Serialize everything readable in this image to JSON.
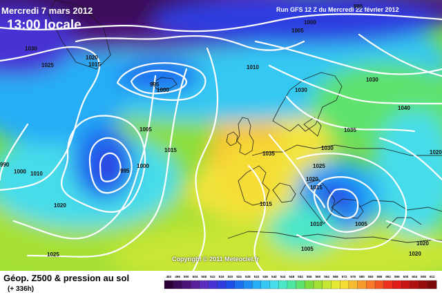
{
  "header": {
    "date": "Mercredi 7 mars 2012",
    "local_time": "13:00 locale",
    "run_info": "Run GFS 12 Z du Mercredi 22 février 2012"
  },
  "footer": {
    "title": "Géop. Z500 & pression au sol",
    "lead": "(+ 336h)"
  },
  "copyright": "Copyright © 2011 Meteociel.fr",
  "colors": {
    "deep_low": "#3a0a5a",
    "low": "#1a3cc8",
    "mid": "#3fcfe8",
    "green": "#7fdc3f",
    "high": "#f2e43a",
    "ridge": "#f6a030",
    "isobar": "#ffffff",
    "coast": "#1a1a1a"
  },
  "legend": {
    "labels": [
      "492",
      "496",
      "500",
      "504",
      "508",
      "512",
      "516",
      "520",
      "524",
      "528",
      "532",
      "536",
      "540",
      "544",
      "548",
      "552",
      "556",
      "560",
      "564",
      "568",
      "572",
      "576",
      "580",
      "584",
      "588",
      "592",
      "596",
      "600",
      "604",
      "608",
      "612"
    ],
    "colors": [
      "#2b0038",
      "#3b0a58",
      "#4a1478",
      "#5a1e98",
      "#5a2cbc",
      "#4632d4",
      "#2e3ce0",
      "#1e4ee8",
      "#1e6ef0",
      "#1e8ef4",
      "#26aef6",
      "#36c8f2",
      "#46dcea",
      "#4ce6c8",
      "#4ce6a0",
      "#5ee270",
      "#7edc40",
      "#a2e036",
      "#c4e634",
      "#e6ea34",
      "#f6dc34",
      "#f6bc30",
      "#f69a2c",
      "#f67828",
      "#f25424",
      "#ee3020",
      "#e01a1a",
      "#c81414",
      "#b01010",
      "#960c0c",
      "#7c0808"
    ]
  },
  "isobar_labels": [
    {
      "text": "985",
      "id": "isobar-label-985"
    },
    {
      "text": "1000",
      "id": "isobar-label-1000-ne"
    },
    {
      "text": "1005",
      "id": "isobar-label-1005-n"
    },
    {
      "text": "1030",
      "id": "isobar-label-1030-nw"
    },
    {
      "text": "1020",
      "id": "isobar-label-1020-nw"
    },
    {
      "text": "1015",
      "id": "isobar-label-1015-nw"
    },
    {
      "text": "1025",
      "id": "isobar-label-1025-w"
    },
    {
      "text": "1010",
      "id": "isobar-label-1010-n"
    },
    {
      "text": "1030",
      "id": "isobar-label-1030-ne"
    },
    {
      "text": "995",
      "id": "isobar-label-995-n"
    },
    {
      "text": "1000",
      "id": "isobar-label-1000-n"
    },
    {
      "text": "1030",
      "id": "isobar-label-1030-c"
    },
    {
      "text": "1035",
      "id": "isobar-label-1035-e"
    },
    {
      "text": "1040",
      "id": "isobar-label-1040-e"
    },
    {
      "text": "1005",
      "id": "isobar-label-1005-c"
    },
    {
      "text": "1015",
      "id": "isobar-label-1015-c"
    },
    {
      "text": "1035",
      "id": "isobar-label-1035-c"
    },
    {
      "text": "1030",
      "id": "isobar-label-1030-s"
    },
    {
      "text": "995",
      "id": "isobar-label-995-sw"
    },
    {
      "text": "1000",
      "id": "isobar-label-1000-sw"
    },
    {
      "text": "990",
      "id": "isobar-label-990-w"
    },
    {
      "text": "1000",
      "id": "isobar-label-1000-w"
    },
    {
      "text": "1010",
      "id": "isobar-label-1010-w"
    },
    {
      "text": "1025",
      "id": "isobar-label-1025-med"
    },
    {
      "text": "1020",
      "id": "isobar-label-1020-med"
    },
    {
      "text": "1015",
      "id": "isobar-label-1015-med"
    },
    {
      "text": "1020",
      "id": "isobar-label-1020-sw"
    },
    {
      "text": "1015",
      "id": "isobar-label-1015-iberia"
    },
    {
      "text": "1010",
      "id": "isobar-label-1010-med"
    },
    {
      "text": "1005",
      "id": "isobar-label-1005-med"
    },
    {
      "text": "1005",
      "id": "isobar-label-1005-s"
    },
    {
      "text": "1025",
      "id": "isobar-label-1025-sw"
    },
    {
      "text": "1020",
      "id": "isobar-label-1020-se"
    },
    {
      "text": "1020",
      "id": "isobar-label-1020-se2"
    },
    {
      "text": "1020",
      "id": "isobar-label-1020-far-e"
    }
  ]
}
